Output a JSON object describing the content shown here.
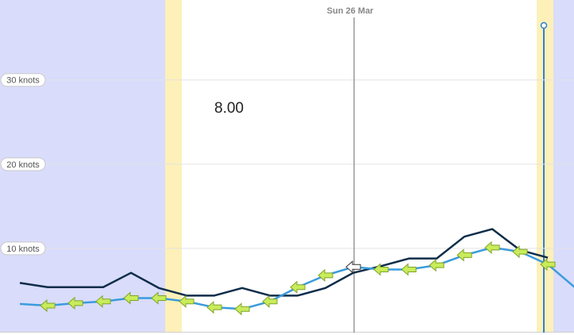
{
  "chart_data": {
    "type": "line",
    "categories": [
      null,
      null,
      null,
      null,
      null,
      null,
      null,
      null,
      null,
      null,
      null,
      null,
      "Sun 26 Mar",
      null,
      null,
      null,
      null,
      null,
      null,
      null,
      null
    ],
    "series": [
      {
        "color": "#0d2d4a",
        "values": [
          5.9,
          5.4,
          5.4,
          5.4,
          7.1,
          5.3,
          4.4,
          4.4,
          5.3,
          4.4,
          4.4,
          5.3,
          7.1,
          7.9,
          8.8,
          8.8,
          11.4,
          12.3,
          9.8,
          8.9,
          null
        ]
      },
      {
        "color": "#3a9bdc",
        "values": [
          3.4,
          3.2,
          3.5,
          3.7,
          4.1,
          4.1,
          3.7,
          3.0,
          2.8,
          3.7,
          5.4,
          6.8,
          7.8,
          7.5,
          7.5,
          8.0,
          9.2,
          10.1,
          9.6,
          8.1,
          5.3
        ]
      }
    ],
    "readout": "8.00",
    "ylim": [
      0,
      39.5
    ],
    "yticks": [
      {
        "value": 10,
        "label": "10 knots"
      },
      {
        "value": 20,
        "label": "20 knots"
      },
      {
        "value": 30,
        "label": "30 knots"
      }
    ],
    "grid": true
  }
}
